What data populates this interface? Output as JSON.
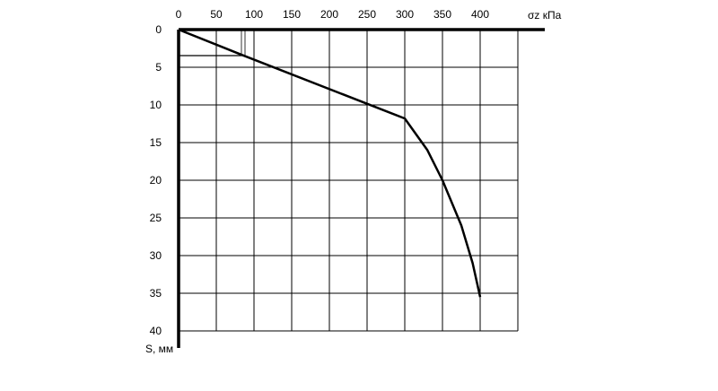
{
  "chart_data": {
    "type": "line",
    "x_label": "σz кПа",
    "y_label": "S, мм",
    "x": [
      0,
      85,
      300,
      330,
      350,
      375,
      390,
      400
    ],
    "values": [
      0,
      3.4,
      11.8,
      16,
      20,
      26,
      31,
      35.5
    ],
    "color": "#000000",
    "xlim": [
      0,
      450
    ],
    "xticks": [
      0,
      50,
      100,
      150,
      200,
      250,
      300,
      350,
      400
    ],
    "ylim": [
      0,
      40
    ],
    "yticks": [
      0,
      5,
      10,
      15,
      20,
      25,
      30,
      35,
      40
    ],
    "y_inverted": true,
    "x_axis_position": "top",
    "grid": true
  }
}
